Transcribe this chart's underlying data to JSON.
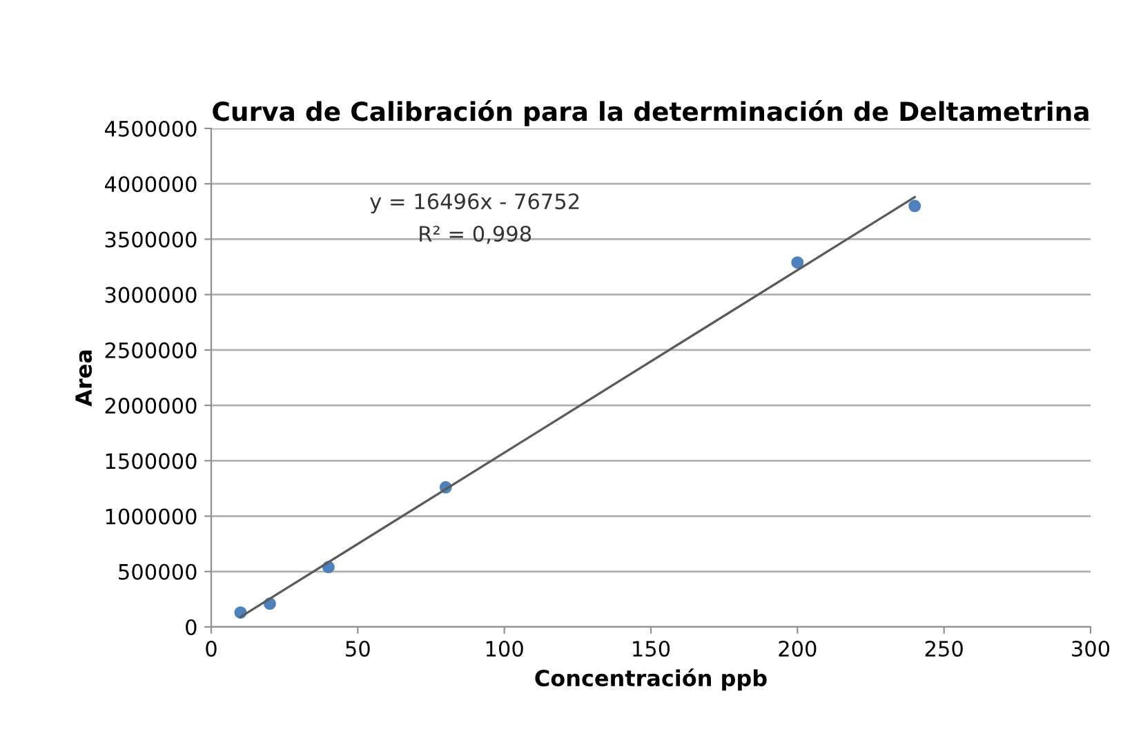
{
  "chart_data": {
    "type": "scatter",
    "title": "Curva de Calibración para la determinación de Deltametrina",
    "xlabel": "Concentración ppb",
    "ylabel": "Area",
    "series": [
      {
        "color": "#4f81bd",
        "marker": "circle",
        "x": [
          10,
          20,
          40,
          80,
          200,
          240
        ],
        "values": [
          130000,
          210000,
          540000,
          1260000,
          3290000,
          3800000
        ]
      },
      {
        "type": "line",
        "color": "#5a5a5a",
        "marker": "none",
        "x": [
          10,
          240
        ],
        "values": [
          90000,
          3880000
        ]
      }
    ],
    "annotations": [
      "y = 16496x - 76752",
      "R² = 0,998"
    ],
    "xlim": [
      0,
      300
    ],
    "xticks": [
      0,
      50,
      100,
      150,
      200,
      250,
      300
    ],
    "ylim": [
      0,
      4500000
    ],
    "yticks": [
      0,
      500000,
      1000000,
      1500000,
      2000000,
      2500000,
      3000000,
      3500000,
      4000000,
      4500000
    ],
    "grid": "y",
    "legend": false
  }
}
